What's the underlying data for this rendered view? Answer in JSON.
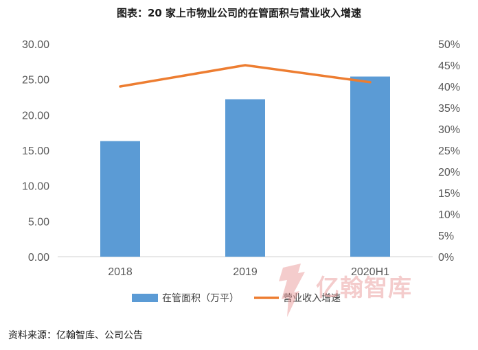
{
  "title": "图表：20 家上市物业公司的在管面积与营业收入增速",
  "source": "资料来源：亿翰智库、公司公告",
  "watermark_text": "亿翰智库",
  "chart_data": {
    "type": "bar",
    "categories": [
      "2018",
      "2019",
      "2020H1"
    ],
    "series": [
      {
        "name": "在管面积（万平）",
        "type": "bar",
        "axis": "left",
        "color": "#5b9bd5",
        "values": [
          16.3,
          22.2,
          25.4
        ]
      },
      {
        "name": "营业收入增速",
        "type": "line",
        "axis": "right",
        "color": "#ed7d31",
        "values": [
          0.4,
          0.45,
          0.41
        ]
      }
    ],
    "y_left": {
      "min": 0,
      "max": 30,
      "ticks": [
        "0.00",
        "5.00",
        "10.00",
        "15.00",
        "20.00",
        "25.00",
        "30.00"
      ]
    },
    "y_right": {
      "min": 0,
      "max": 0.5,
      "ticks": [
        "0%",
        "5%",
        "10%",
        "15%",
        "20%",
        "25%",
        "30%",
        "35%",
        "40%",
        "45%",
        "50%"
      ]
    },
    "grid": false,
    "legend": "bottom"
  }
}
